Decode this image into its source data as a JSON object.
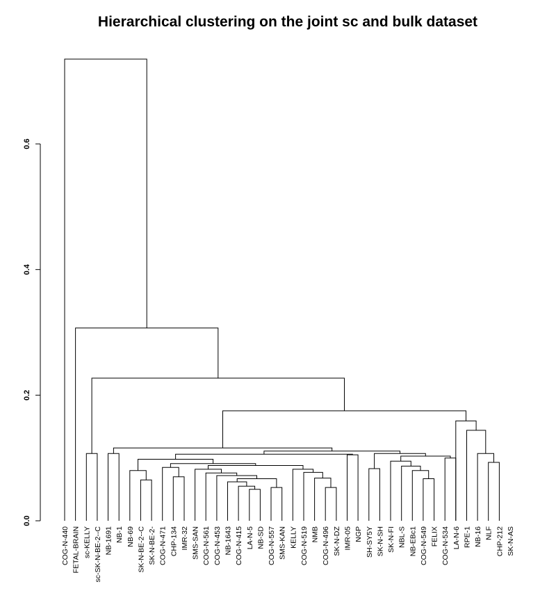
{
  "chart_data": {
    "type": "dendrogram",
    "title": "Hierarchical clustering on the joint sc and bulk dataset",
    "xlabel": "",
    "ylabel": "",
    "ylim": [
      0,
      0.74
    ],
    "yticks": [
      0.0,
      0.2,
      0.4,
      0.6
    ],
    "ytick_labels": [
      "0.0",
      "0.2",
      "0.4",
      "0.6"
    ],
    "leaves": [
      "COG-N-440",
      "FETAL-BRAIN",
      "sc-KELLY",
      "sc-SK-N-BE-2--C",
      "NB-1691",
      "NB-1",
      "NB-69",
      "SK-N-BE-2--C",
      "SK-N-BE-2-",
      "COG-N-471",
      "CHP-134",
      "IMR-32",
      "SMS-SAN",
      "COG-N-561",
      "COG-N-453",
      "NB-1643",
      "COG-N-415",
      "LA-N-5",
      "NB-SD",
      "COG-N-557",
      "SMS-KAN",
      "KELLY",
      "COG-N-519",
      "NMB",
      "COG-N-496",
      "SK-N-DZ",
      "IMR-05",
      "NGP",
      "SH-SY5Y",
      "SK-N-SH",
      "SK-N-FI",
      "NBL-S",
      "NB-EBc1",
      "COG-N-549",
      "FELIX",
      "COG-N-534",
      "LA-N-6",
      "RPE-1",
      "NB-16",
      "NLF",
      "CHP-212",
      "SK-N-AS"
    ],
    "merges": [
      {
        "a": "L17",
        "b": "L18",
        "h": 0.05
      },
      {
        "a": "L16",
        "b": "M0",
        "h": 0.055
      },
      {
        "a": "L15",
        "b": "M1",
        "h": 0.062
      },
      {
        "a": "L19",
        "b": "L20",
        "h": 0.053
      },
      {
        "a": "M2",
        "b": "M3",
        "h": 0.067
      },
      {
        "a": "L14",
        "b": "M4",
        "h": 0.072
      },
      {
        "a": "L13",
        "b": "M5",
        "h": 0.076
      },
      {
        "a": "L12",
        "b": "M6",
        "h": 0.082
      },
      {
        "a": "L24",
        "b": "L25",
        "h": 0.053
      },
      {
        "a": "L23",
        "b": "M8",
        "h": 0.068
      },
      {
        "a": "L22",
        "b": "M9",
        "h": 0.077
      },
      {
        "a": "L21",
        "b": "M10",
        "h": 0.082
      },
      {
        "a": "M7",
        "b": "M11",
        "h": 0.088
      },
      {
        "a": "L7",
        "b": "L8",
        "h": 0.065
      },
      {
        "a": "L6",
        "b": "M13",
        "h": 0.08
      },
      {
        "a": "L10",
        "b": "L11",
        "h": 0.07
      },
      {
        "a": "L9",
        "b": "M15",
        "h": 0.085
      },
      {
        "a": "M16",
        "b": "M12",
        "h": 0.091
      },
      {
        "a": "M14",
        "b": "M17",
        "h": 0.098
      },
      {
        "a": "L26",
        "b": "L27",
        "h": 0.105
      },
      {
        "a": "M18",
        "b": "M19",
        "h": 0.106
      },
      {
        "a": "L33",
        "b": "L34",
        "h": 0.067
      },
      {
        "a": "L32",
        "b": "M21",
        "h": 0.08
      },
      {
        "a": "L31",
        "b": "M22",
        "h": 0.087
      },
      {
        "a": "L30",
        "b": "M23",
        "h": 0.095
      },
      {
        "a": "L35",
        "b": "L36",
        "h": 0.1
      },
      {
        "a": "M24",
        "b": "M25",
        "h": 0.103
      },
      {
        "a": "L28",
        "b": "L29",
        "h": 0.083
      },
      {
        "a": "M27",
        "b": "M26",
        "h": 0.107
      },
      {
        "a": "M20",
        "b": "M28",
        "h": 0.111
      },
      {
        "a": "L4",
        "b": "L5",
        "h": 0.107
      },
      {
        "a": "M30",
        "b": "M29",
        "h": 0.116
      },
      {
        "a": "L39",
        "b": "L40",
        "h": 0.093
      },
      {
        "a": "L38",
        "b": "M32",
        "h": 0.107
      },
      {
        "a": "L37",
        "b": "M33",
        "h": 0.144
      },
      {
        "a": "L36b",
        "b": "M34",
        "h": 0.159
      },
      {
        "a": "M31",
        "b": "M35",
        "h": 0.175
      },
      {
        "a": "L2",
        "b": "L3",
        "h": 0.107
      },
      {
        "a": "M37",
        "b": "M36",
        "h": 0.227
      },
      {
        "a": "L1",
        "b": "M38",
        "h": 0.307
      },
      {
        "a": "L0",
        "b": "M39",
        "h": 0.735
      }
    ]
  }
}
